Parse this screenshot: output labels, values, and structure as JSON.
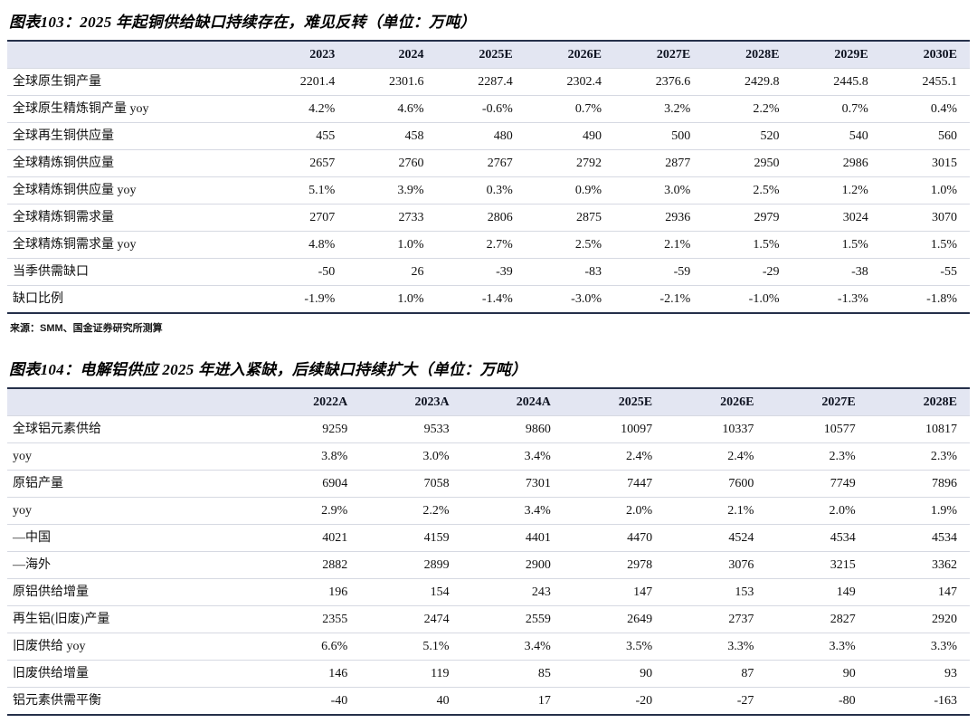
{
  "colors": {
    "header_background": "#e3e6f2",
    "heavy_border": "#25304a",
    "row_divider": "#d6d9e2",
    "text": "#111111"
  },
  "figure103": {
    "title": "图表103：2025 年起铜供给缺口持续存在，难见反转（单位：万吨）",
    "source": "来源：SMM、国金证券研究所测算",
    "table": {
      "columns": [
        "",
        "2023",
        "2024",
        "2025E",
        "2026E",
        "2027E",
        "2028E",
        "2029E",
        "2030E"
      ],
      "rows": [
        {
          "label": "全球原生铜产量",
          "values": [
            "2201.4",
            "2301.6",
            "2287.4",
            "2302.4",
            "2376.6",
            "2429.8",
            "2445.8",
            "2455.1"
          ]
        },
        {
          "label": "全球原生精炼铜产量 yoy",
          "values": [
            "4.2%",
            "4.6%",
            "-0.6%",
            "0.7%",
            "3.2%",
            "2.2%",
            "0.7%",
            "0.4%"
          ]
        },
        {
          "label": "全球再生铜供应量",
          "values": [
            "455",
            "458",
            "480",
            "490",
            "500",
            "520",
            "540",
            "560"
          ]
        },
        {
          "label": "全球精炼铜供应量",
          "values": [
            "2657",
            "2760",
            "2767",
            "2792",
            "2877",
            "2950",
            "2986",
            "3015"
          ]
        },
        {
          "label": "全球精炼铜供应量 yoy",
          "values": [
            "5.1%",
            "3.9%",
            "0.3%",
            "0.9%",
            "3.0%",
            "2.5%",
            "1.2%",
            "1.0%"
          ]
        },
        {
          "label": "全球精炼铜需求量",
          "values": [
            "2707",
            "2733",
            "2806",
            "2875",
            "2936",
            "2979",
            "3024",
            "3070"
          ]
        },
        {
          "label": "全球精炼铜需求量 yoy",
          "values": [
            "4.8%",
            "1.0%",
            "2.7%",
            "2.5%",
            "2.1%",
            "1.5%",
            "1.5%",
            "1.5%"
          ]
        },
        {
          "label": "当季供需缺口",
          "values": [
            "-50",
            "26",
            "-39",
            "-83",
            "-59",
            "-29",
            "-38",
            "-55"
          ]
        },
        {
          "label": "缺口比例",
          "values": [
            "-1.9%",
            "1.0%",
            "-1.4%",
            "-3.0%",
            "-2.1%",
            "-1.0%",
            "-1.3%",
            "-1.8%"
          ]
        }
      ]
    }
  },
  "figure104": {
    "title": "图表104：电解铝供应 2025 年进入紧缺，后续缺口持续扩大（单位：万吨）",
    "table": {
      "columns": [
        "",
        "2022A",
        "2023A",
        "2024A",
        "2025E",
        "2026E",
        "2027E",
        "2028E"
      ],
      "rows": [
        {
          "label": "全球铝元素供给",
          "values": [
            "9259",
            "9533",
            "9860",
            "10097",
            "10337",
            "10577",
            "10817"
          ]
        },
        {
          "label": "yoy",
          "values": [
            "3.8%",
            "3.0%",
            "3.4%",
            "2.4%",
            "2.4%",
            "2.3%",
            "2.3%"
          ]
        },
        {
          "label": "原铝产量",
          "values": [
            "6904",
            "7058",
            "7301",
            "7447",
            "7600",
            "7749",
            "7896"
          ]
        },
        {
          "label": "yoy",
          "values": [
            "2.9%",
            "2.2%",
            "3.4%",
            "2.0%",
            "2.1%",
            "2.0%",
            "1.9%"
          ]
        },
        {
          "label": "—中国",
          "values": [
            "4021",
            "4159",
            "4401",
            "4470",
            "4524",
            "4534",
            "4534"
          ]
        },
        {
          "label": "—海外",
          "values": [
            "2882",
            "2899",
            "2900",
            "2978",
            "3076",
            "3215",
            "3362"
          ]
        },
        {
          "label": "原铝供给增量",
          "values": [
            "196",
            "154",
            "243",
            "147",
            "153",
            "149",
            "147"
          ]
        },
        {
          "label": "再生铝(旧废)产量",
          "values": [
            "2355",
            "2474",
            "2559",
            "2649",
            "2737",
            "2827",
            "2920"
          ]
        },
        {
          "label": "旧废供给 yoy",
          "values": [
            "6.6%",
            "5.1%",
            "3.4%",
            "3.5%",
            "3.3%",
            "3.3%",
            "3.3%"
          ]
        },
        {
          "label": "旧废供给增量",
          "values": [
            "146",
            "119",
            "85",
            "90",
            "87",
            "90",
            "93"
          ]
        },
        {
          "label": "铝元素供需平衡",
          "values": [
            "-40",
            "40",
            "17",
            "-20",
            "-27",
            "-80",
            "-163"
          ]
        }
      ]
    }
  }
}
